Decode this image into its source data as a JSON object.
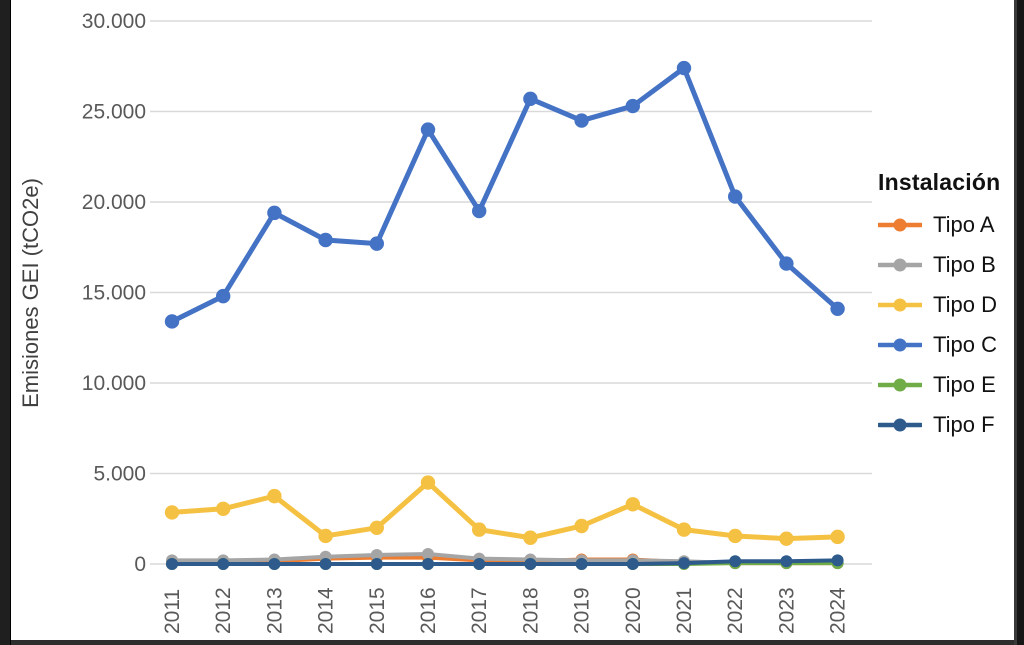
{
  "window": {
    "background": "#ffffff",
    "edge_color": "#1f1f1f"
  },
  "axis_style": {
    "tick_color": "#595959",
    "grid_color": "#d9d9d9",
    "axis_title_color": "#404040"
  },
  "chart_data": {
    "type": "line",
    "title": "",
    "xlabel": "",
    "ylabel": "Emisiones GEI (tCO2e)",
    "ylim": [
      0,
      30000
    ],
    "y_tick_step": 5000,
    "y_tick_labels": [
      "0",
      "5.000",
      "10.000",
      "15.000",
      "20.000",
      "25.000",
      "30.000"
    ],
    "grid": true,
    "legend_title": "Instalación",
    "legend_position": "right",
    "categories": [
      "2011",
      "2012",
      "2013",
      "2014",
      "2015",
      "2016",
      "2017",
      "2018",
      "2019",
      "2020",
      "2021",
      "2022",
      "2023",
      "2024"
    ],
    "series": [
      {
        "name": "Tipo A",
        "color": "#ED7D31",
        "values": [
          100,
          100,
          150,
          300,
          350,
          350,
          200,
          150,
          250,
          250,
          100,
          50,
          50,
          50
        ]
      },
      {
        "name": "Tipo B",
        "color": "#A5A5A5",
        "values": [
          200,
          200,
          250,
          400,
          500,
          550,
          300,
          250,
          200,
          200,
          150,
          50,
          50,
          50
        ]
      },
      {
        "name": "Tipo D",
        "color": "#F5C142",
        "values": [
          2850,
          3050,
          3750,
          1550,
          2000,
          4500,
          1900,
          1450,
          2100,
          3300,
          1900,
          1550,
          1400,
          1500
        ]
      },
      {
        "name": "Tipo C",
        "color": "#4472C4",
        "values": [
          13400,
          14800,
          19400,
          17900,
          17700,
          24000,
          19500,
          25700,
          24500,
          25300,
          27400,
          20300,
          16600,
          14100
        ]
      },
      {
        "name": "Tipo E",
        "color": "#70AD47",
        "values": [
          0,
          0,
          0,
          0,
          0,
          0,
          0,
          0,
          0,
          0,
          0,
          50,
          50,
          50
        ]
      },
      {
        "name": "Tipo F",
        "color": "#2E5B8C",
        "values": [
          0,
          0,
          0,
          0,
          0,
          0,
          0,
          0,
          0,
          0,
          50,
          150,
          150,
          200
        ]
      }
    ]
  }
}
